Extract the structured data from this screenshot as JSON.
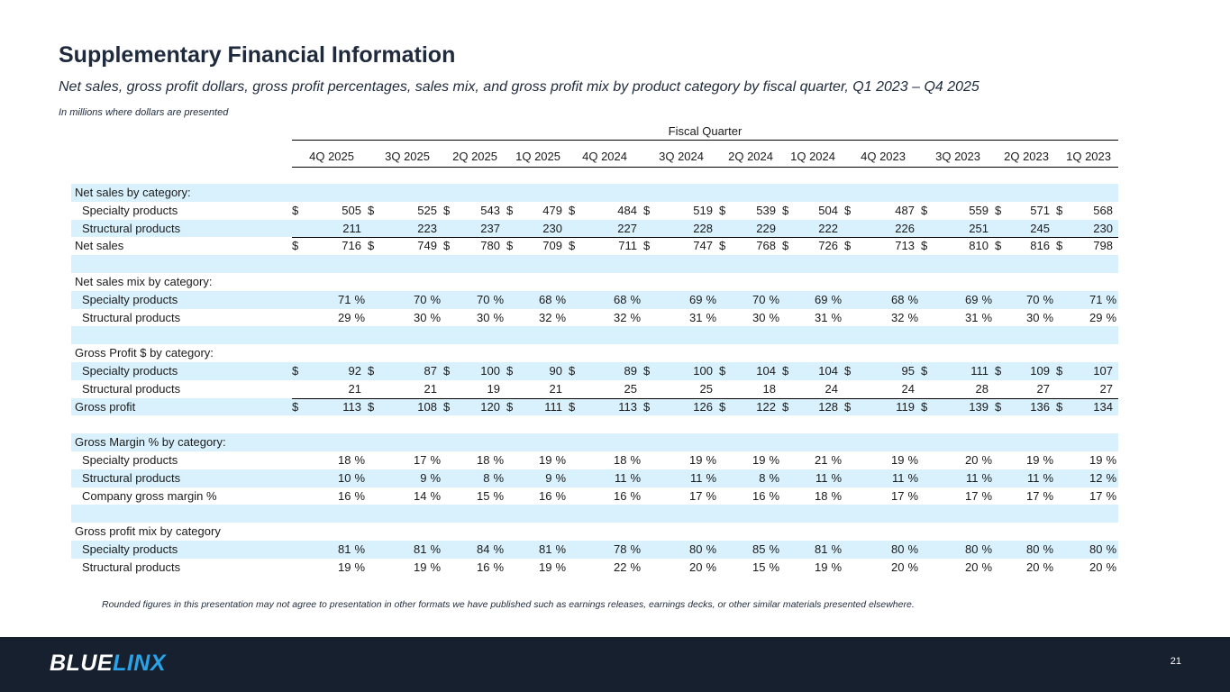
{
  "title": "Supplementary Financial Information",
  "subtitle": "Net sales, gross profit dollars, gross profit percentages, sales mix, and gross profit mix by product category by fiscal quarter, Q1 2023 – Q4 2025",
  "units_note": "In millions where dollars are presented",
  "fiscal_quarter_label": "Fiscal Quarter",
  "quarters": [
    "4Q 2025",
    "3Q 2025",
    "2Q 2025",
    "1Q 2025",
    "4Q 2024",
    "3Q 2024",
    "2Q 2024",
    "1Q 2024",
    "4Q 2023",
    "3Q 2023",
    "2Q 2023",
    "1Q 2023"
  ],
  "rows": [
    {
      "label": "Net sales by category:",
      "type": "section",
      "shade": true
    },
    {
      "label": "Specialty products",
      "type": "dollar",
      "indent": true,
      "values": [
        "505",
        "525",
        "543",
        "479",
        "484",
        "519",
        "539",
        "504",
        "487",
        "559",
        "571",
        "568"
      ]
    },
    {
      "label": "Structural products",
      "type": "plain",
      "indent": true,
      "shade": true,
      "values": [
        "211",
        "223",
        "237",
        "230",
        "227",
        "228",
        "229",
        "222",
        "226",
        "251",
        "245",
        "230"
      ]
    },
    {
      "label": "Net sales",
      "type": "dollar",
      "topline": true,
      "values": [
        "716",
        "749",
        "780",
        "709",
        "711",
        "747",
        "768",
        "726",
        "713",
        "810",
        "816",
        "798"
      ]
    },
    {
      "label": "",
      "type": "blank",
      "shade": true
    },
    {
      "label": "Net sales mix by category:",
      "type": "section"
    },
    {
      "label": "Specialty products",
      "type": "pct",
      "indent": true,
      "shade": true,
      "values": [
        "71",
        "70",
        "70",
        "68",
        "68",
        "69",
        "70",
        "69",
        "68",
        "69",
        "70",
        "71"
      ]
    },
    {
      "label": "Structural products",
      "type": "pct",
      "indent": true,
      "values": [
        "29",
        "30",
        "30",
        "32",
        "32",
        "31",
        "30",
        "31",
        "32",
        "31",
        "30",
        "29"
      ]
    },
    {
      "label": "",
      "type": "blank",
      "shade": true
    },
    {
      "label": "Gross Profit $ by category:",
      "type": "section"
    },
    {
      "label": "Specialty products",
      "type": "dollar",
      "indent": true,
      "shade": true,
      "values": [
        "92",
        "87",
        "100",
        "90",
        "89",
        "100",
        "104",
        "104",
        "95",
        "111",
        "109",
        "107"
      ]
    },
    {
      "label": "Structural products",
      "type": "plain",
      "indent": true,
      "values": [
        "21",
        "21",
        "19",
        "21",
        "25",
        "25",
        "18",
        "24",
        "24",
        "28",
        "27",
        "27"
      ]
    },
    {
      "label": "Gross profit",
      "type": "dollar",
      "topline": true,
      "shade": true,
      "values": [
        "113",
        "108",
        "120",
        "111",
        "113",
        "126",
        "122",
        "128",
        "119",
        "139",
        "136",
        "134"
      ]
    },
    {
      "label": "",
      "type": "blank"
    },
    {
      "label": "Gross Margin % by category:",
      "type": "section",
      "shade": true
    },
    {
      "label": "Specialty products",
      "type": "pct",
      "indent": true,
      "values": [
        "18",
        "17",
        "18",
        "19",
        "18",
        "19",
        "19",
        "21",
        "19",
        "20",
        "19",
        "19"
      ]
    },
    {
      "label": "Structural products",
      "type": "pct",
      "indent": true,
      "shade": true,
      "values": [
        "10",
        "9",
        "8",
        "9",
        "11",
        "11",
        "8",
        "11",
        "11",
        "11",
        "11",
        "12"
      ]
    },
    {
      "label": "Company gross margin %",
      "type": "pct",
      "indent": true,
      "values": [
        "16",
        "14",
        "15",
        "16",
        "16",
        "17",
        "16",
        "18",
        "17",
        "17",
        "17",
        "17"
      ]
    },
    {
      "label": "",
      "type": "blank",
      "shade": true
    },
    {
      "label": "Gross profit mix by category",
      "type": "section"
    },
    {
      "label": "Specialty products",
      "type": "pct",
      "indent": true,
      "shade": true,
      "values": [
        "81",
        "81",
        "84",
        "81",
        "78",
        "80",
        "85",
        "81",
        "80",
        "80",
        "80",
        "80"
      ]
    },
    {
      "label": "Structural products",
      "type": "pct",
      "indent": true,
      "values": [
        "19",
        "19",
        "16",
        "19",
        "22",
        "20",
        "15",
        "19",
        "20",
        "20",
        "20",
        "20"
      ]
    }
  ],
  "dollar_symbol": "$",
  "percent_symbol": "%",
  "footnote": "Rounded figures in this presentation may not agree to presentation in other formats we have published such as earnings releases, earnings decks, or other similar materials presented elsewhere.",
  "logo": {
    "part1": "BLUE",
    "part2": "LINX"
  },
  "page_number": "21",
  "colors": {
    "shade": "#d9f1fd",
    "footer_bg": "#16202e",
    "logo_accent": "#29a3e8",
    "title": "#1f2a3c"
  }
}
